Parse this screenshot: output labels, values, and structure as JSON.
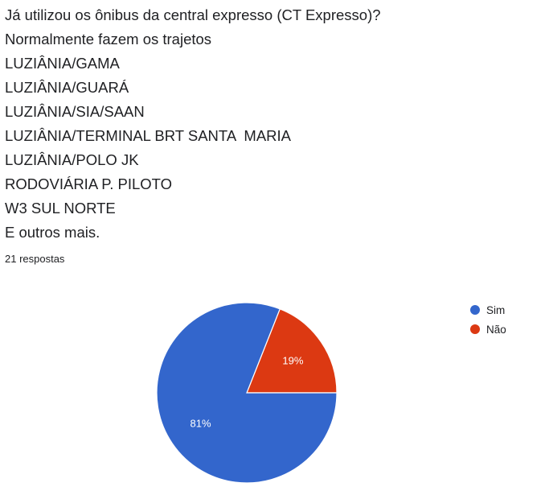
{
  "question": {
    "lines": [
      "Já utilizou os ônibus da central expresso (CT Expresso)?",
      "Normalmente fazem os trajetos",
      "LUZIÂNIA/GAMA",
      "LUZIÂNIA/GUARÁ",
      "LUZIÂNIA/SIA/SAAN",
      "LUZIÂNIA/TERMINAL BRT SANTA  MARIA",
      "LUZIÂNIA/POLO JK",
      "RODOVIÁRIA P. PILOTO",
      "W3 SUL NORTE",
      "E outros mais."
    ]
  },
  "responses_label": "21 respostas",
  "chart_data": {
    "type": "pie",
    "title": "",
    "categories": [
      "Sim",
      "Não"
    ],
    "values": [
      81,
      19
    ],
    "labels": [
      "81%",
      "19%"
    ],
    "colors": [
      "#3366cc",
      "#dc3912"
    ],
    "legend_position": "top-right",
    "start_angle_deg": 0,
    "direction": "clockwise"
  }
}
